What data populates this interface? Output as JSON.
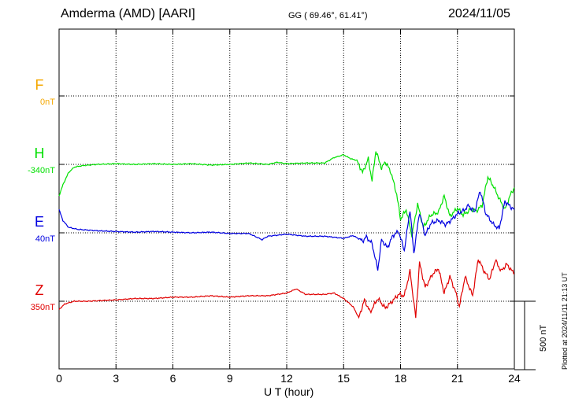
{
  "header": {
    "station": "Amderma (AMD)  [AARI]",
    "coords": "GG ( 69.46°,  61.41°)",
    "date": "2024/11/05"
  },
  "plotted_note": "Plotted at 2024/11/11 21:13 UT",
  "chart_data": {
    "type": "line",
    "title": "Amderma (AMD)  [AARI]",
    "xlabel": "U T (hour)",
    "xlim": [
      0,
      24
    ],
    "xticks": [
      "0",
      "3",
      "6",
      "9",
      "12",
      "15",
      "18",
      "21",
      "24"
    ],
    "grid": true,
    "scale_bar": {
      "label": "500 nT",
      "value": 500
    },
    "series": [
      {
        "name": "F",
        "baseline": "0nT",
        "color": "#f5a800",
        "values": []
      },
      {
        "name": "H",
        "baseline": "-340nT",
        "color": "#00e000",
        "points": [
          [
            0,
            -230
          ],
          [
            0.2,
            -150
          ],
          [
            0.5,
            -60
          ],
          [
            0.8,
            -20
          ],
          [
            1.2,
            -10
          ],
          [
            2,
            0
          ],
          [
            3,
            5
          ],
          [
            4,
            0
          ],
          [
            5,
            5
          ],
          [
            6,
            0
          ],
          [
            7,
            5
          ],
          [
            8,
            -5
          ],
          [
            9,
            0
          ],
          [
            10,
            10
          ],
          [
            11,
            0
          ],
          [
            11.5,
            15
          ],
          [
            12,
            5
          ],
          [
            13,
            10
          ],
          [
            14,
            10
          ],
          [
            14.5,
            50
          ],
          [
            15,
            70
          ],
          [
            15.4,
            40
          ],
          [
            15.7,
            30
          ],
          [
            16,
            -60
          ],
          [
            16.3,
            40
          ],
          [
            16.5,
            -120
          ],
          [
            16.7,
            100
          ],
          [
            17,
            -30
          ],
          [
            17.2,
            20
          ],
          [
            17.5,
            -60
          ],
          [
            17.8,
            -220
          ],
          [
            18,
            -400
          ],
          [
            18.3,
            -330
          ],
          [
            18.6,
            -520
          ],
          [
            18.9,
            -290
          ],
          [
            19.2,
            -460
          ],
          [
            19.6,
            -370
          ],
          [
            20,
            -350
          ],
          [
            20.3,
            -230
          ],
          [
            20.6,
            -380
          ],
          [
            21,
            -320
          ],
          [
            21.3,
            -370
          ],
          [
            21.7,
            -330
          ],
          [
            22,
            -340
          ],
          [
            22.3,
            -300
          ],
          [
            22.6,
            -90
          ],
          [
            22.9,
            -160
          ],
          [
            23.2,
            -250
          ],
          [
            23.5,
            -330
          ],
          [
            23.8,
            -220
          ],
          [
            24,
            -170
          ]
        ]
      },
      {
        "name": "E",
        "baseline": "40nT",
        "color": "#0000e0",
        "points": [
          [
            0,
            170
          ],
          [
            0.2,
            90
          ],
          [
            0.5,
            40
          ],
          [
            1,
            25
          ],
          [
            2,
            15
          ],
          [
            3,
            10
          ],
          [
            4,
            5
          ],
          [
            5,
            10
          ],
          [
            6,
            5
          ],
          [
            7,
            0
          ],
          [
            8,
            5
          ],
          [
            9,
            -5
          ],
          [
            10,
            -5
          ],
          [
            10.7,
            -50
          ],
          [
            11,
            -25
          ],
          [
            12,
            -10
          ],
          [
            13,
            -25
          ],
          [
            14,
            -25
          ],
          [
            15,
            -40
          ],
          [
            15.5,
            -20
          ],
          [
            16,
            -60
          ],
          [
            16.2,
            -30
          ],
          [
            16.5,
            -80
          ],
          [
            16.8,
            -270
          ],
          [
            17,
            -50
          ],
          [
            17.3,
            -110
          ],
          [
            17.6,
            -20
          ],
          [
            17.9,
            10
          ],
          [
            18.2,
            -130
          ],
          [
            18.5,
            170
          ],
          [
            18.7,
            -150
          ],
          [
            19,
            150
          ],
          [
            19.3,
            -20
          ],
          [
            19.6,
            70
          ],
          [
            20,
            90
          ],
          [
            20.4,
            60
          ],
          [
            20.8,
            110
          ],
          [
            21,
            140
          ],
          [
            21.3,
            160
          ],
          [
            21.6,
            200
          ],
          [
            21.9,
            150
          ],
          [
            22.2,
            310
          ],
          [
            22.5,
            140
          ],
          [
            22.9,
            60
          ],
          [
            23.2,
            30
          ],
          [
            23.5,
            230
          ],
          [
            23.8,
            190
          ],
          [
            24,
            170
          ]
        ]
      },
      {
        "name": "Z",
        "baseline": "350nT",
        "color": "#e00000",
        "points": [
          [
            0,
            -60
          ],
          [
            0.3,
            -20
          ],
          [
            0.8,
            0
          ],
          [
            1.5,
            0
          ],
          [
            3,
            10
          ],
          [
            4,
            20
          ],
          [
            5,
            20
          ],
          [
            6,
            30
          ],
          [
            7,
            30
          ],
          [
            8,
            40
          ],
          [
            9,
            30
          ],
          [
            10,
            40
          ],
          [
            11,
            40
          ],
          [
            12,
            60
          ],
          [
            12.5,
            90
          ],
          [
            13,
            50
          ],
          [
            14,
            50
          ],
          [
            14.5,
            60
          ],
          [
            15,
            20
          ],
          [
            15.5,
            -40
          ],
          [
            15.8,
            -120
          ],
          [
            16.1,
            10
          ],
          [
            16.4,
            -80
          ],
          [
            16.8,
            20
          ],
          [
            17.2,
            -50
          ],
          [
            17.5,
            -10
          ],
          [
            17.9,
            50
          ],
          [
            18.2,
            40
          ],
          [
            18.5,
            220
          ],
          [
            18.8,
            -120
          ],
          [
            19,
            280
          ],
          [
            19.3,
            100
          ],
          [
            19.7,
            200
          ],
          [
            20,
            240
          ],
          [
            20.3,
            60
          ],
          [
            20.6,
            180
          ],
          [
            20.9,
            70
          ],
          [
            21.1,
            -40
          ],
          [
            21.4,
            180
          ],
          [
            21.8,
            40
          ],
          [
            22.1,
            310
          ],
          [
            22.4,
            220
          ],
          [
            22.7,
            160
          ],
          [
            23,
            300
          ],
          [
            23.3,
            220
          ],
          [
            23.6,
            270
          ],
          [
            24,
            200
          ]
        ]
      }
    ]
  }
}
